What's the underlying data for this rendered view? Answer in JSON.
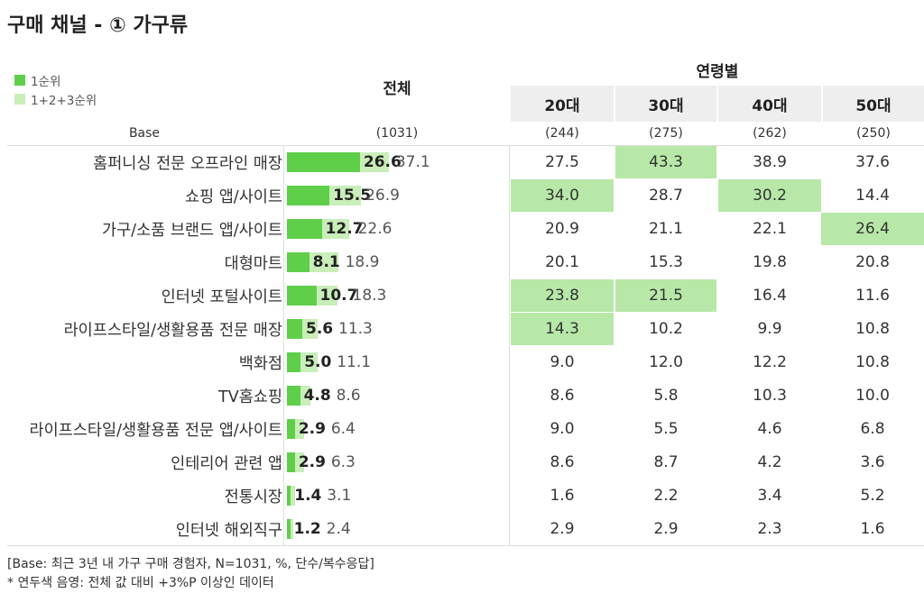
{
  "title": "구매 채널 - ① 가구류",
  "legend": [
    {
      "label": "1순위",
      "color": "#5fcf4a"
    },
    {
      "label": "1+2+3순위",
      "color": "#c9eeb9"
    }
  ],
  "header": {
    "total": "전체",
    "age_group": "연령별",
    "ages": [
      "20대",
      "30대",
      "40대",
      "50대"
    ]
  },
  "base": {
    "label": "Base",
    "total": "(1031)",
    "ages": [
      "(244)",
      "(275)",
      "(262)",
      "(250)"
    ]
  },
  "colors": {
    "rank1": "#5fcf4a",
    "rank123": "#c9eeb9",
    "highlight": "#b7e8a8"
  },
  "chart_data": {
    "type": "bar",
    "orientation": "horizontal",
    "title": "구매 채널 - ① 가구류",
    "categories": [
      "홈퍼니싱 전문 오프라인 매장",
      "쇼핑 앱/사이트",
      "가구/소품 브랜드 앱/사이트",
      "대형마트",
      "인터넷 포털사이트",
      "라이프스타일/생활용품 전문 매장",
      "백화점",
      "TV홈쇼핑",
      "라이프스타일/생활용품 전문 앱/사이트",
      "인테리어 관련 앱",
      "전통시장",
      "인터넷 해외직구"
    ],
    "series": [
      {
        "name": "1순위",
        "values": [
          26.6,
          15.5,
          12.7,
          8.1,
          10.7,
          5.6,
          5.0,
          4.8,
          2.9,
          2.9,
          1.4,
          1.2
        ]
      },
      {
        "name": "1+2+3순위",
        "values": [
          37.1,
          26.9,
          22.6,
          18.9,
          18.3,
          11.3,
          11.1,
          8.6,
          6.4,
          6.3,
          3.1,
          2.4
        ]
      }
    ],
    "labels_rank1": [
      "26.6",
      "15.5",
      "12.7",
      "8.1",
      "10.7",
      "5.6",
      "5.0",
      "4.8",
      "2.9",
      "2.9",
      "1.4",
      "1.2"
    ],
    "labels_rank123": [
      "37.1",
      "26.9",
      "22.6",
      "18.9",
      "18.3",
      "11.3",
      "11.1",
      "8.6",
      "6.4",
      "6.3",
      "3.1",
      "2.4"
    ],
    "xlim": [
      0,
      55
    ],
    "age_table": {
      "columns": [
        "20대",
        "30대",
        "40대",
        "50대"
      ],
      "rows": [
        [
          "27.5",
          "43.3",
          "38.9",
          "37.6"
        ],
        [
          "34.0",
          "28.7",
          "30.2",
          "14.4"
        ],
        [
          "20.9",
          "21.1",
          "22.1",
          "26.4"
        ],
        [
          "20.1",
          "15.3",
          "19.8",
          "20.8"
        ],
        [
          "23.8",
          "21.5",
          "16.4",
          "11.6"
        ],
        [
          "14.3",
          "10.2",
          "9.9",
          "10.8"
        ],
        [
          "9.0",
          "12.0",
          "12.2",
          "10.8"
        ],
        [
          "8.6",
          "5.8",
          "10.3",
          "10.0"
        ],
        [
          "9.0",
          "5.5",
          "4.6",
          "6.8"
        ],
        [
          "8.6",
          "8.7",
          "4.2",
          "3.6"
        ],
        [
          "1.6",
          "2.2",
          "3.4",
          "5.2"
        ],
        [
          "2.9",
          "2.9",
          "2.3",
          "1.6"
        ]
      ],
      "highlighted": [
        [
          false,
          true,
          false,
          false
        ],
        [
          true,
          false,
          true,
          false
        ],
        [
          false,
          false,
          false,
          true
        ],
        [
          false,
          false,
          false,
          false
        ],
        [
          true,
          true,
          false,
          false
        ],
        [
          true,
          false,
          false,
          false
        ],
        [
          false,
          false,
          false,
          false
        ],
        [
          false,
          false,
          false,
          false
        ],
        [
          false,
          false,
          false,
          false
        ],
        [
          false,
          false,
          false,
          false
        ],
        [
          false,
          false,
          false,
          false
        ],
        [
          false,
          false,
          false,
          false
        ]
      ]
    }
  },
  "footnotes": [
    "[Base: 최근 3년 내 가구 구매 경험자, N=1031, %, 단수/복수응답]",
    "* 연두색 음영: 전체 값 대비 +3%P 이상인 데이터"
  ]
}
